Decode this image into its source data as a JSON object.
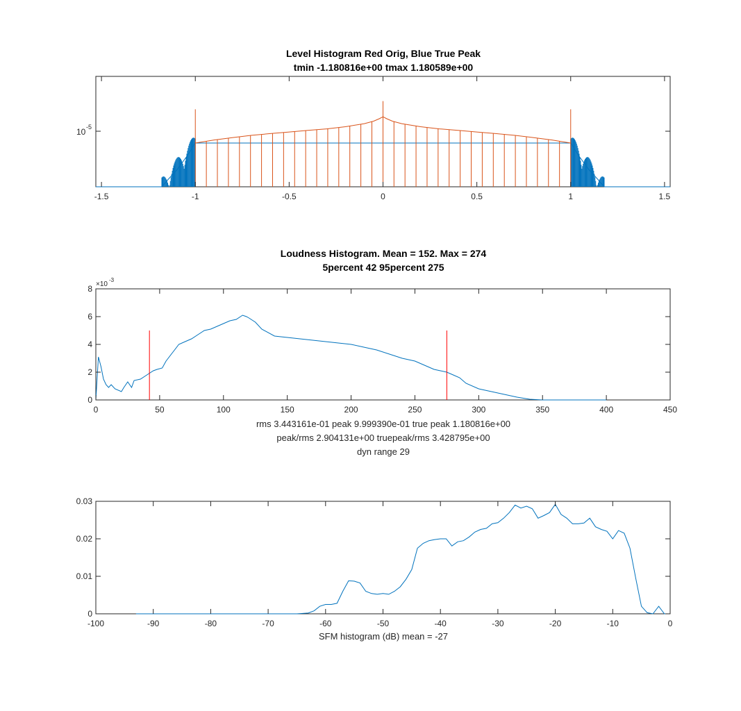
{
  "figure": {
    "background": "#ffffff"
  },
  "chart_data": [
    {
      "type": "line",
      "title": "Level Histogram Red Orig, Blue True Peak",
      "subtitle": "tmin -1.180816e+00 tmax 1.180589e+00",
      "xlim": [
        -1.53,
        1.53
      ],
      "xticks": [
        -1.5,
        -1,
        -0.5,
        0,
        0.5,
        1,
        1.5
      ],
      "xtick_labels": [
        "-1.5",
        "-1",
        "-0.5",
        "0",
        "0.5",
        "1",
        "1.5"
      ],
      "yscale": "log",
      "ylim": [
        2.5e-06,
        4e-05
      ],
      "yticks": [
        1e-05
      ],
      "ytick_labels": [
        "10",
        "-5"
      ],
      "series": [
        {
          "color": "#0072BD",
          "x": [
            -1.53,
            -1.18,
            -1.1,
            -1.05,
            -1.0,
            1.0,
            1.05,
            1.1,
            1.18,
            1.53
          ],
          "y": [
            2.5e-06,
            2.5e-06,
            3.8e-06,
            5.2e-06,
            7.5e-06,
            7.5e-06,
            5.2e-06,
            3.8e-06,
            2.5e-06,
            2.5e-06
          ]
        },
        {
          "color": "#D95319",
          "x": [
            -1.0,
            -0.9,
            -0.8,
            -0.7,
            -0.6,
            -0.5,
            -0.4,
            -0.3,
            -0.2,
            -0.1,
            -0.05,
            -0.02,
            0,
            0.02,
            0.05,
            0.1,
            0.2,
            0.3,
            0.4,
            0.5,
            0.6,
            0.7,
            0.8,
            0.9,
            1.0
          ],
          "y": [
            7.5e-06,
            8.1e-06,
            8.6e-06,
            9.1e-06,
            9.5e-06,
            9.9e-06,
            1.03e-05,
            1.07e-05,
            1.13e-05,
            1.22e-05,
            1.3e-05,
            1.38e-05,
            1.45e-05,
            1.38e-05,
            1.3e-05,
            1.22e-05,
            1.13e-05,
            1.07e-05,
            1.03e-05,
            9.9e-06,
            9.5e-06,
            9.1e-06,
            8.6e-06,
            8.1e-06,
            7.5e-06
          ],
          "spikes": [
            {
              "x": -1.0,
              "y": 1.75e-05
            },
            {
              "x": 0,
              "y": 2.15e-05
            },
            {
              "x": 1.0,
              "y": 1.75e-05
            }
          ],
          "comb_spacing": 0.0588
        }
      ]
    },
    {
      "type": "line",
      "title": "Loudness Histogram. Mean = 152. Max = 274",
      "subtitle": "5percent 42 95percent 275",
      "xlim": [
        0,
        450
      ],
      "xticks": [
        0,
        50,
        100,
        150,
        200,
        250,
        300,
        350,
        400,
        450
      ],
      "ylim": [
        0,
        0.008
      ],
      "yticks": [
        0,
        0.002,
        0.004,
        0.006,
        0.008
      ],
      "ytick_labels": [
        "0",
        "2",
        "4",
        "6",
        "8"
      ],
      "y_exponent": "-3",
      "xlabel_lines": [
        "rms 3.443161e-01 peak 9.999390e-01 true peak 1.180816e+00",
        "peak/rms 2.904131e+00 truepeak/rms 3.428795e+00",
        "dyn range 29"
      ],
      "series": [
        {
          "color": "#0072BD",
          "x": [
            0,
            2,
            4,
            6,
            8,
            10,
            12,
            15,
            20,
            22,
            25,
            28,
            30,
            35,
            40,
            45,
            48,
            52,
            55,
            60,
            65,
            70,
            75,
            80,
            85,
            90,
            95,
            100,
            105,
            110,
            115,
            118,
            120,
            125,
            130,
            140,
            150,
            160,
            170,
            180,
            190,
            200,
            210,
            220,
            230,
            240,
            250,
            260,
            265,
            270,
            275,
            280,
            285,
            290,
            300,
            310,
            320,
            330,
            340,
            350,
            360,
            370,
            380,
            390,
            400
          ],
          "y": [
            0,
            0.0031,
            0.0024,
            0.0015,
            0.0011,
            0.0009,
            0.0011,
            0.0008,
            0.0006,
            0.0009,
            0.0013,
            0.0009,
            0.0014,
            0.0015,
            0.0018,
            0.0021,
            0.0022,
            0.0023,
            0.0028,
            0.0034,
            0.004,
            0.0042,
            0.0044,
            0.0047,
            0.005,
            0.0051,
            0.0053,
            0.0055,
            0.0057,
            0.0058,
            0.0061,
            0.006,
            0.0059,
            0.0056,
            0.0051,
            0.0046,
            0.0045,
            0.0044,
            0.0043,
            0.0042,
            0.0041,
            0.004,
            0.0038,
            0.0036,
            0.0033,
            0.003,
            0.0028,
            0.0024,
            0.0022,
            0.0021,
            0.002,
            0.0018,
            0.0016,
            0.0012,
            0.0008,
            0.0006,
            0.0004,
            0.0002,
            5e-05,
            0,
            0,
            0,
            0,
            0,
            0
          ]
        }
      ],
      "markers": [
        {
          "x": 42,
          "y": 0.005,
          "color": "#FF0000"
        },
        {
          "x": 275,
          "y": 0.005,
          "color": "#FF0000"
        }
      ]
    },
    {
      "type": "line",
      "xlim": [
        -100,
        0
      ],
      "xticks": [
        -100,
        -90,
        -80,
        -70,
        -60,
        -50,
        -40,
        -30,
        -20,
        -10,
        0
      ],
      "ylim": [
        0,
        0.03
      ],
      "yticks": [
        0,
        0.01,
        0.02,
        0.03
      ],
      "ytick_labels": [
        "0",
        "0.01",
        "0.02",
        "0.03"
      ],
      "xlabel": "SFM histogram (dB) mean = -27",
      "series": [
        {
          "color": "#0072BD",
          "x": [
            -93,
            -90,
            -85,
            -80,
            -75,
            -70,
            -65,
            -63,
            -62,
            -61,
            -60,
            -59,
            -58,
            -57,
            -56,
            -55,
            -54,
            -53,
            -52,
            -51,
            -50,
            -49,
            -48,
            -47,
            -46,
            -45,
            -44,
            -43,
            -42,
            -41,
            -40,
            -39,
            -38,
            -37,
            -36,
            -35,
            -34,
            -33,
            -32,
            -31,
            -30,
            -29,
            -28,
            -27,
            -26,
            -25,
            -24,
            -23,
            -22,
            -21,
            -20,
            -19,
            -18,
            -17,
            -16,
            -15,
            -14,
            -13,
            -12,
            -11,
            -10,
            -9,
            -8,
            -7,
            -6,
            -5,
            -4,
            -3,
            -2,
            -1,
            0
          ],
          "y": [
            0,
            0,
            0,
            0,
            0,
            0,
            0,
            0.0002,
            0.0008,
            0.002,
            0.0025,
            0.0025,
            0.0028,
            0.006,
            0.0088,
            0.0087,
            0.0082,
            0.006,
            0.0054,
            0.0052,
            0.0054,
            0.0052,
            0.006,
            0.0072,
            0.0092,
            0.0118,
            0.0175,
            0.0188,
            0.0195,
            0.0198,
            0.02,
            0.02,
            0.0181,
            0.0192,
            0.0195,
            0.0205,
            0.0218,
            0.0225,
            0.0228,
            0.024,
            0.0243,
            0.0255,
            0.027,
            0.029,
            0.0282,
            0.0287,
            0.028,
            0.0255,
            0.0262,
            0.027,
            0.0292,
            0.0265,
            0.0255,
            0.024,
            0.024,
            0.0242,
            0.0255,
            0.0232,
            0.0225,
            0.022,
            0.02,
            0.0222,
            0.0215,
            0.0175,
            0.0095,
            0.002,
            0.0003,
            0,
            0.002,
            0,
            0
          ]
        }
      ]
    }
  ]
}
